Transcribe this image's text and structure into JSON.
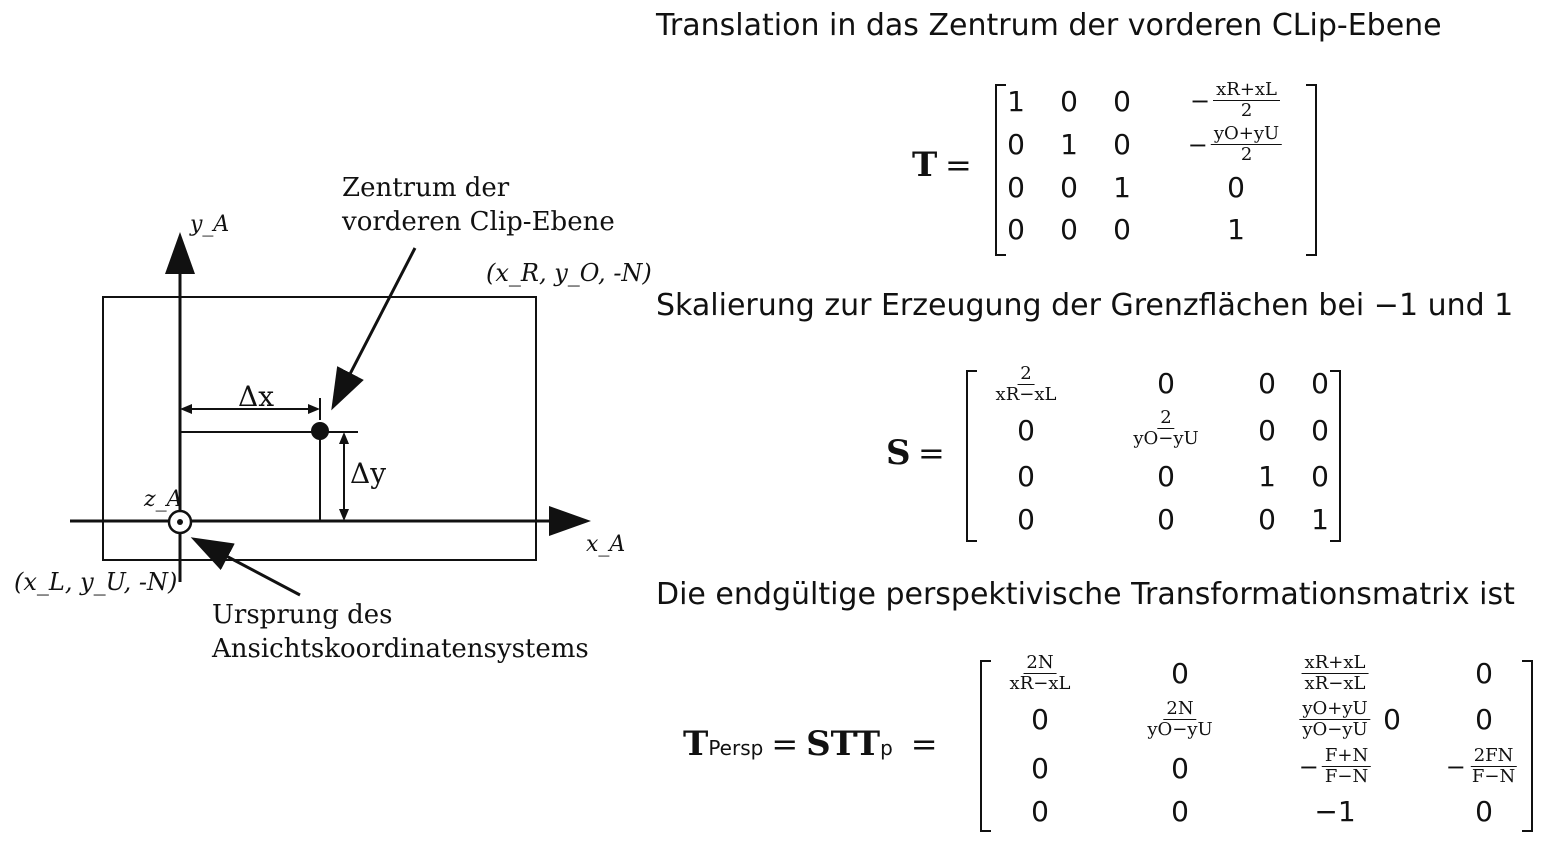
{
  "figure": {
    "label_center": [
      "Zentrum der",
      "vorderen Clip-Ebene"
    ],
    "label_origin": [
      "Ursprung des",
      "Ansichtskoordinatensystems"
    ],
    "axis_y": "y_A",
    "axis_x": "x_A",
    "axis_z": "z_A",
    "corner_top": "(x_R, y_O, -N)",
    "corner_bottom": "(x_L, y_U, -N)",
    "delta_x": "Δx",
    "delta_y": "Δy"
  },
  "headings": {
    "translation": "Translation in das Zentrum der vorderen CLip-Ebene",
    "scaling": "Skalierung zur Erzeugung der Grenzflächen bei −1 und 1",
    "final": "Die endgültige perspektivische Transformationsmatrix ist"
  },
  "matrix_T": {
    "name": "T",
    "equals": "=",
    "cells": [
      [
        "1",
        "0",
        "0",
        "-(xR+xL)/2"
      ],
      [
        "0",
        "1",
        "0",
        "-(yO+yU)/2"
      ],
      [
        "0",
        "0",
        "1",
        "0"
      ],
      [
        "0",
        "0",
        "0",
        "1"
      ]
    ],
    "frac_row1": {
      "neg": "−",
      "num": "xR+xL",
      "den": "2"
    },
    "frac_row2": {
      "neg": "−",
      "num": "yO+yU",
      "den": "2"
    }
  },
  "matrix_S": {
    "name": "S",
    "equals": "=",
    "cells": [
      [
        "2/(xR−xL)",
        "0",
        "0",
        "0"
      ],
      [
        "0",
        "2/(yO−yU)",
        "0",
        "0"
      ],
      [
        "0",
        "0",
        "1",
        "0"
      ],
      [
        "0",
        "0",
        "0",
        "1"
      ]
    ],
    "frac_11": {
      "num": "2",
      "den": "xR−xL"
    },
    "frac_22": {
      "num": "2",
      "den": "yO−yU"
    }
  },
  "matrix_P": {
    "name": "T",
    "name_sub": "Persp",
    "equals": "=",
    "rhs": "STT",
    "rhs_sub": "p",
    "equals2": "=",
    "cells": [
      [
        "2N/(xR−xL)",
        "0",
        "(xR+xL)/(xR−xL)",
        "0"
      ],
      [
        "0",
        "2N/(yO−yU)",
        "(yO+yU)/(yO−yU)",
        "0"
      ],
      [
        "0",
        "0",
        "−(F+N)/(F−N)",
        "−2FN/(F−N)"
      ],
      [
        "0",
        "0",
        "−1",
        "0"
      ]
    ],
    "f11": {
      "num": "2N",
      "den": "xR−xL"
    },
    "f13": {
      "num": "xR+xL",
      "den": "xR−xL"
    },
    "f22": {
      "num": "2N",
      "den": "yO−yU"
    },
    "f23": {
      "num": "yO+yU",
      "den": "yO−yU"
    },
    "f23_tail": "0",
    "f33": {
      "neg": "−",
      "num": "F+N",
      "den": "F−N"
    },
    "f34": {
      "neg": "−",
      "num": "2FN",
      "den": "F−N"
    }
  }
}
